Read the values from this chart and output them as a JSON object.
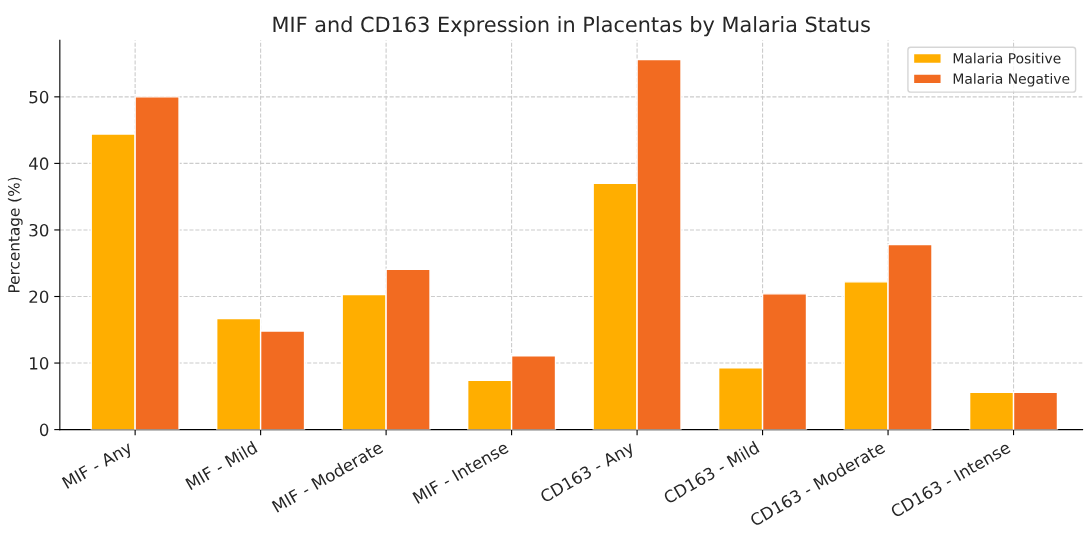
{
  "chart_data": {
    "type": "bar",
    "title": "MIF and CD163 Expression in Placentas by Malaria Status",
    "ylabel": "Percentage (%)",
    "categories": [
      "MIF - Any",
      "MIF - Mild",
      "MIF - Moderate",
      "MIF - Intense",
      "CD163 - Any",
      "CD163 - Mild",
      "CD163 - Moderate",
      "CD163 - Intense"
    ],
    "series": [
      {
        "name": "Malaria Positive",
        "color": "#ffae00",
        "values": [
          44.4,
          16.7,
          20.3,
          7.4,
          37.0,
          9.3,
          22.2,
          5.6
        ]
      },
      {
        "name": "Malaria Negative",
        "color": "#f26b21",
        "values": [
          50.0,
          14.8,
          24.1,
          11.1,
          55.6,
          20.4,
          27.8,
          5.6
        ]
      }
    ],
    "ylim": [
      0,
      58.5
    ],
    "yticks": [
      0,
      10,
      20,
      30,
      40,
      50
    ],
    "grid": true,
    "legend": "top right"
  }
}
